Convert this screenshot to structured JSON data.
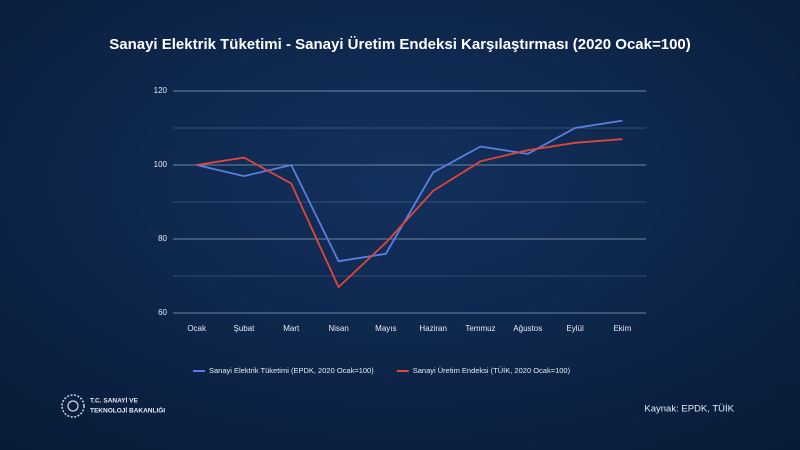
{
  "chart_data": {
    "type": "line",
    "title": "Sanayi Elektrik Tüketimi - Sanayi Üretim Endeksi Karşılaştırması (2020 Ocak=100)",
    "categories": [
      "Ocak",
      "Şubat",
      "Mart",
      "Nisan",
      "Mayıs",
      "Haziran",
      "Temmuz",
      "Ağustos",
      "Eylül",
      "Ekim"
    ],
    "series": [
      {
        "name": "Sanayi Elektrik Tüketimi (EPDK, 2020 Ocak=100)",
        "color": "#5b7fe0",
        "values": [
          100,
          97,
          100,
          74,
          76,
          98,
          105,
          103,
          110,
          112
        ]
      },
      {
        "name": "Sanayi Üretim Endeksi (TÜİK, 2020 Ocak=100)",
        "color": "#e0473a",
        "values": [
          100,
          102,
          95,
          67,
          79,
          93,
          101,
          104,
          106,
          107
        ]
      }
    ],
    "ylim": [
      60,
      120
    ],
    "yticks": [
      60,
      80,
      100,
      120
    ],
    "minor_yticks": [
      70,
      90,
      110
    ],
    "grid": true,
    "legend": "bottom",
    "logo_text": [
      "T.C. SANAYİ VE",
      "TEKNOLOJİ BAKANLIĞI"
    ],
    "source": "Kaynak:  EPDK, TÜİK"
  }
}
